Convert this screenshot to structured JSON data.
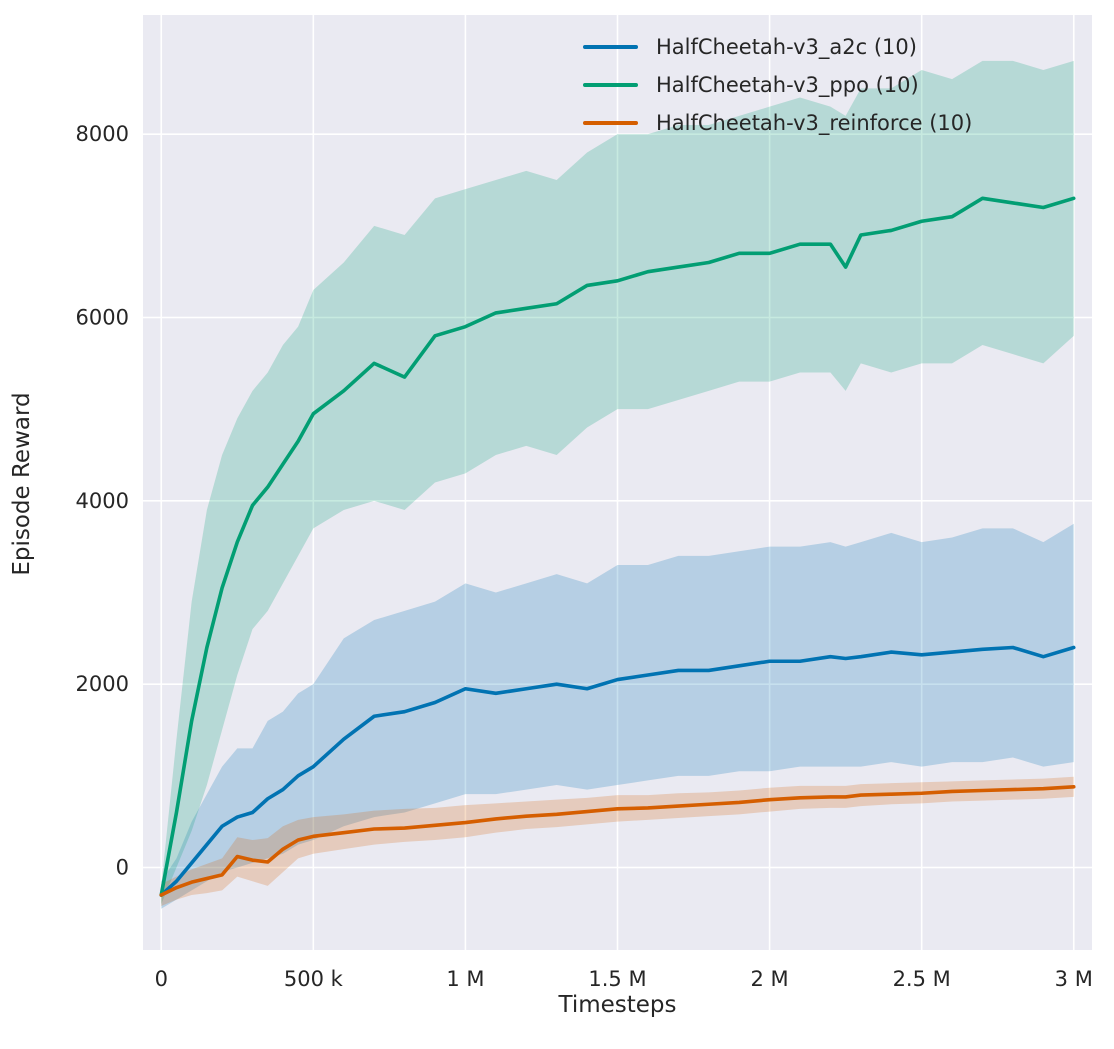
{
  "chart_data": {
    "type": "line",
    "title": "",
    "xlabel": "Timesteps",
    "ylabel": "Episode Reward",
    "xlim": [
      -60000,
      3060000
    ],
    "ylim": [
      -900,
      9300
    ],
    "grid": true,
    "legend_position": "upper center",
    "background_color": "#eaeaf2",
    "grid_color": "#ffffff",
    "text_color": "#262626",
    "x_tick_values": [
      0,
      500000,
      1000000,
      1500000,
      2000000,
      2500000,
      3000000
    ],
    "x_tick_labels": [
      "0",
      "500 k",
      "1 M",
      "1.5 M",
      "2 M",
      "2.5 M",
      "3 M"
    ],
    "y_tick_values": [
      0,
      2000,
      4000,
      6000,
      8000
    ],
    "y_tick_labels": [
      "0",
      "2000",
      "4000",
      "6000",
      "8000"
    ],
    "x": [
      0,
      50000,
      100000,
      150000,
      200000,
      250000,
      300000,
      350000,
      400000,
      450000,
      500000,
      600000,
      700000,
      800000,
      900000,
      1000000,
      1100000,
      1200000,
      1300000,
      1400000,
      1500000,
      1600000,
      1700000,
      1800000,
      1900000,
      2000000,
      2100000,
      2200000,
      2250000,
      2300000,
      2400000,
      2500000,
      2600000,
      2700000,
      2800000,
      2900000,
      3000000
    ],
    "series": [
      {
        "id": "a2c",
        "name": "HalfCheetah-v3_a2c (10)",
        "color": "#0173b2",
        "mean": [
          -300,
          -150,
          50,
          250,
          450,
          550,
          600,
          750,
          850,
          1000,
          1100,
          1400,
          1650,
          1700,
          1800,
          1950,
          1900,
          1950,
          2000,
          1950,
          2050,
          2100,
          2150,
          2150,
          2200,
          2250,
          2250,
          2300,
          2280,
          2300,
          2350,
          2320,
          2350,
          2380,
          2400,
          2300,
          2400
        ],
        "lo": [
          -450,
          -350,
          -250,
          -150,
          -50,
          0,
          50,
          100,
          150,
          250,
          300,
          450,
          550,
          600,
          700,
          800,
          800,
          850,
          900,
          850,
          900,
          950,
          1000,
          1000,
          1050,
          1050,
          1100,
          1100,
          1100,
          1100,
          1150,
          1100,
          1150,
          1150,
          1200,
          1100,
          1150
        ],
        "hi": [
          -150,
          100,
          500,
          800,
          1100,
          1300,
          1300,
          1600,
          1700,
          1900,
          2000,
          2500,
          2700,
          2800,
          2900,
          3100,
          3000,
          3100,
          3200,
          3100,
          3300,
          3300,
          3400,
          3400,
          3450,
          3500,
          3500,
          3550,
          3500,
          3550,
          3650,
          3550,
          3600,
          3700,
          3700,
          3550,
          3750
        ]
      },
      {
        "id": "ppo",
        "name": "HalfCheetah-v3_ppo (10)",
        "color": "#029e73",
        "mean": [
          -300,
          600,
          1600,
          2400,
          3050,
          3550,
          3950,
          4150,
          4400,
          4650,
          4950,
          5200,
          5500,
          5350,
          5800,
          5900,
          6050,
          6100,
          6150,
          6350,
          6400,
          6500,
          6550,
          6600,
          6700,
          6700,
          6800,
          6800,
          6550,
          6900,
          6950,
          7050,
          7100,
          7300,
          7250,
          7200,
          7300
        ],
        "lo": [
          -400,
          0,
          400,
          900,
          1500,
          2100,
          2600,
          2800,
          3100,
          3400,
          3700,
          3900,
          4000,
          3900,
          4200,
          4300,
          4500,
          4600,
          4500,
          4800,
          5000,
          5000,
          5100,
          5200,
          5300,
          5300,
          5400,
          5400,
          5200,
          5500,
          5400,
          5500,
          5500,
          5700,
          5600,
          5500,
          5800
        ],
        "hi": [
          -200,
          1400,
          2900,
          3900,
          4500,
          4900,
          5200,
          5400,
          5700,
          5900,
          6300,
          6600,
          7000,
          6900,
          7300,
          7400,
          7500,
          7600,
          7500,
          7800,
          8000,
          8000,
          8100,
          8100,
          8200,
          8300,
          8400,
          8300,
          8200,
          8500,
          8500,
          8700,
          8600,
          8800,
          8800,
          8700,
          8800
        ]
      },
      {
        "id": "reinforce",
        "name": "HalfCheetah-v3_reinforce (10)",
        "color": "#d55e00",
        "mean": [
          -300,
          -220,
          -160,
          -120,
          -80,
          120,
          80,
          60,
          200,
          300,
          340,
          380,
          420,
          430,
          460,
          490,
          530,
          560,
          580,
          610,
          640,
          650,
          670,
          690,
          710,
          740,
          760,
          770,
          770,
          790,
          800,
          810,
          830,
          840,
          850,
          860,
          880
        ],
        "lo": [
          -420,
          -350,
          -300,
          -280,
          -250,
          -100,
          -150,
          -200,
          -50,
          100,
          150,
          200,
          250,
          280,
          300,
          330,
          380,
          420,
          440,
          470,
          500,
          520,
          540,
          560,
          580,
          610,
          640,
          650,
          650,
          670,
          690,
          700,
          720,
          730,
          740,
          750,
          770
        ],
        "hi": [
          -180,
          -100,
          -20,
          40,
          100,
          330,
          300,
          320,
          450,
          520,
          550,
          580,
          620,
          640,
          650,
          680,
          700,
          720,
          740,
          760,
          790,
          790,
          810,
          820,
          840,
          870,
          890,
          890,
          890,
          910,
          920,
          930,
          940,
          950,
          960,
          970,
          990
        ]
      }
    ]
  }
}
